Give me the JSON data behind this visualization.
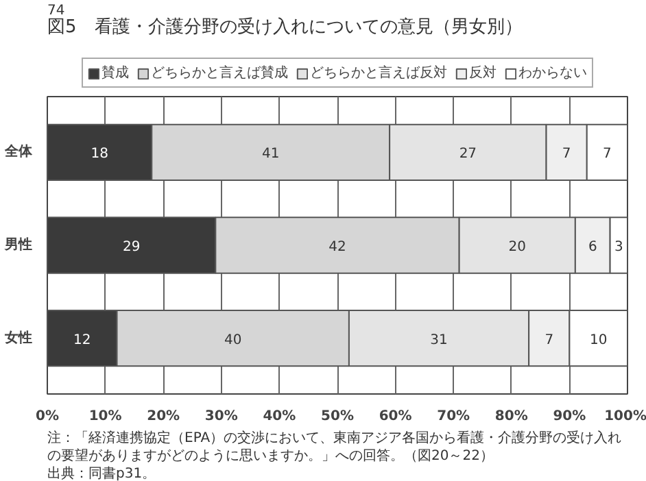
{
  "chart_data": {
    "type": "bar",
    "orientation": "horizontal",
    "stacked": true,
    "title": "図5　看護・介護分野の受け入れについての意見（男女別）",
    "categories": [
      "全体",
      "男性",
      "女性"
    ],
    "series": [
      {
        "name": "賛成",
        "color": "#3a3a3a",
        "values": [
          18,
          29,
          12
        ]
      },
      {
        "name": "どちらかと言えば賛成",
        "color": "#d6d6d6",
        "values": [
          41,
          42,
          40
        ]
      },
      {
        "name": "どちらかと言えば反対",
        "color": "#e4e4e4",
        "values": [
          27,
          20,
          31
        ]
      },
      {
        "name": "反対",
        "color": "#efefef",
        "values": [
          7,
          6,
          7
        ]
      },
      {
        "name": "わからない",
        "color": "#ffffff",
        "values": [
          7,
          3,
          10
        ]
      }
    ],
    "xlim": [
      0,
      100
    ],
    "xticks": [
      {
        "value": 0,
        "label": "0%"
      },
      {
        "value": 10,
        "label": "10%"
      },
      {
        "value": 20,
        "label": "20%"
      },
      {
        "value": 30,
        "label": "30%"
      },
      {
        "value": 40,
        "label": "40%"
      },
      {
        "value": 50,
        "label": "50%"
      },
      {
        "value": 60,
        "label": "60%"
      },
      {
        "value": 70,
        "label": "70%"
      },
      {
        "value": 80,
        "label": "80%"
      },
      {
        "value": 90,
        "label": "90%"
      },
      {
        "value": 100,
        "label": "100%"
      }
    ],
    "grid": "x",
    "legend": "top",
    "data_labels": true,
    "annotations": [
      "74",
      "注：「経済連携協定（EPA）の交渉において、東南アジア各国から看護・介護分野の受け入れの要望がありますがどのように思いますか。」への回答。（図20～22）",
      "出典：同書p31。"
    ]
  }
}
